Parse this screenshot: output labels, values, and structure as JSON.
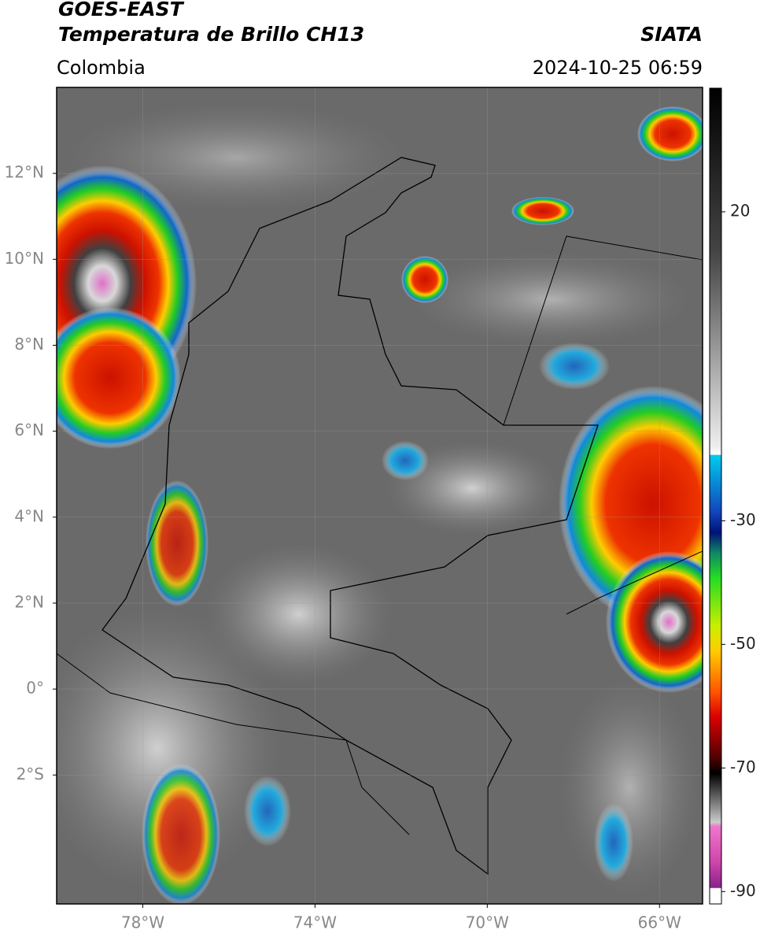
{
  "header": {
    "title": "GOES-EAST",
    "subtitle": "Temperatura de Brillo CH13",
    "source": "SIATA",
    "region": "Colombia",
    "timestamp": "2024-10-25 06:59"
  },
  "map": {
    "xlim": [
      -80,
      -65
    ],
    "ylim": [
      -5,
      14
    ],
    "xticks": [
      {
        "value": -78,
        "label": "78°W"
      },
      {
        "value": -74,
        "label": "74°W"
      },
      {
        "value": -70,
        "label": "70°W"
      },
      {
        "value": -66,
        "label": "66°W"
      }
    ],
    "yticks": [
      {
        "value": 12,
        "label": "12°N"
      },
      {
        "value": 10,
        "label": "10°N"
      },
      {
        "value": 8,
        "label": "8°N"
      },
      {
        "value": 6,
        "label": "6°N"
      },
      {
        "value": 4,
        "label": "4°N"
      },
      {
        "value": 2,
        "label": "2°N"
      },
      {
        "value": 0,
        "label": "0°"
      },
      {
        "value": -2,
        "label": "2°S"
      }
    ],
    "colorbar": {
      "lim": [
        -92,
        40
      ],
      "ticks": [
        20,
        -30,
        -50,
        -70,
        -90
      ]
    }
  }
}
